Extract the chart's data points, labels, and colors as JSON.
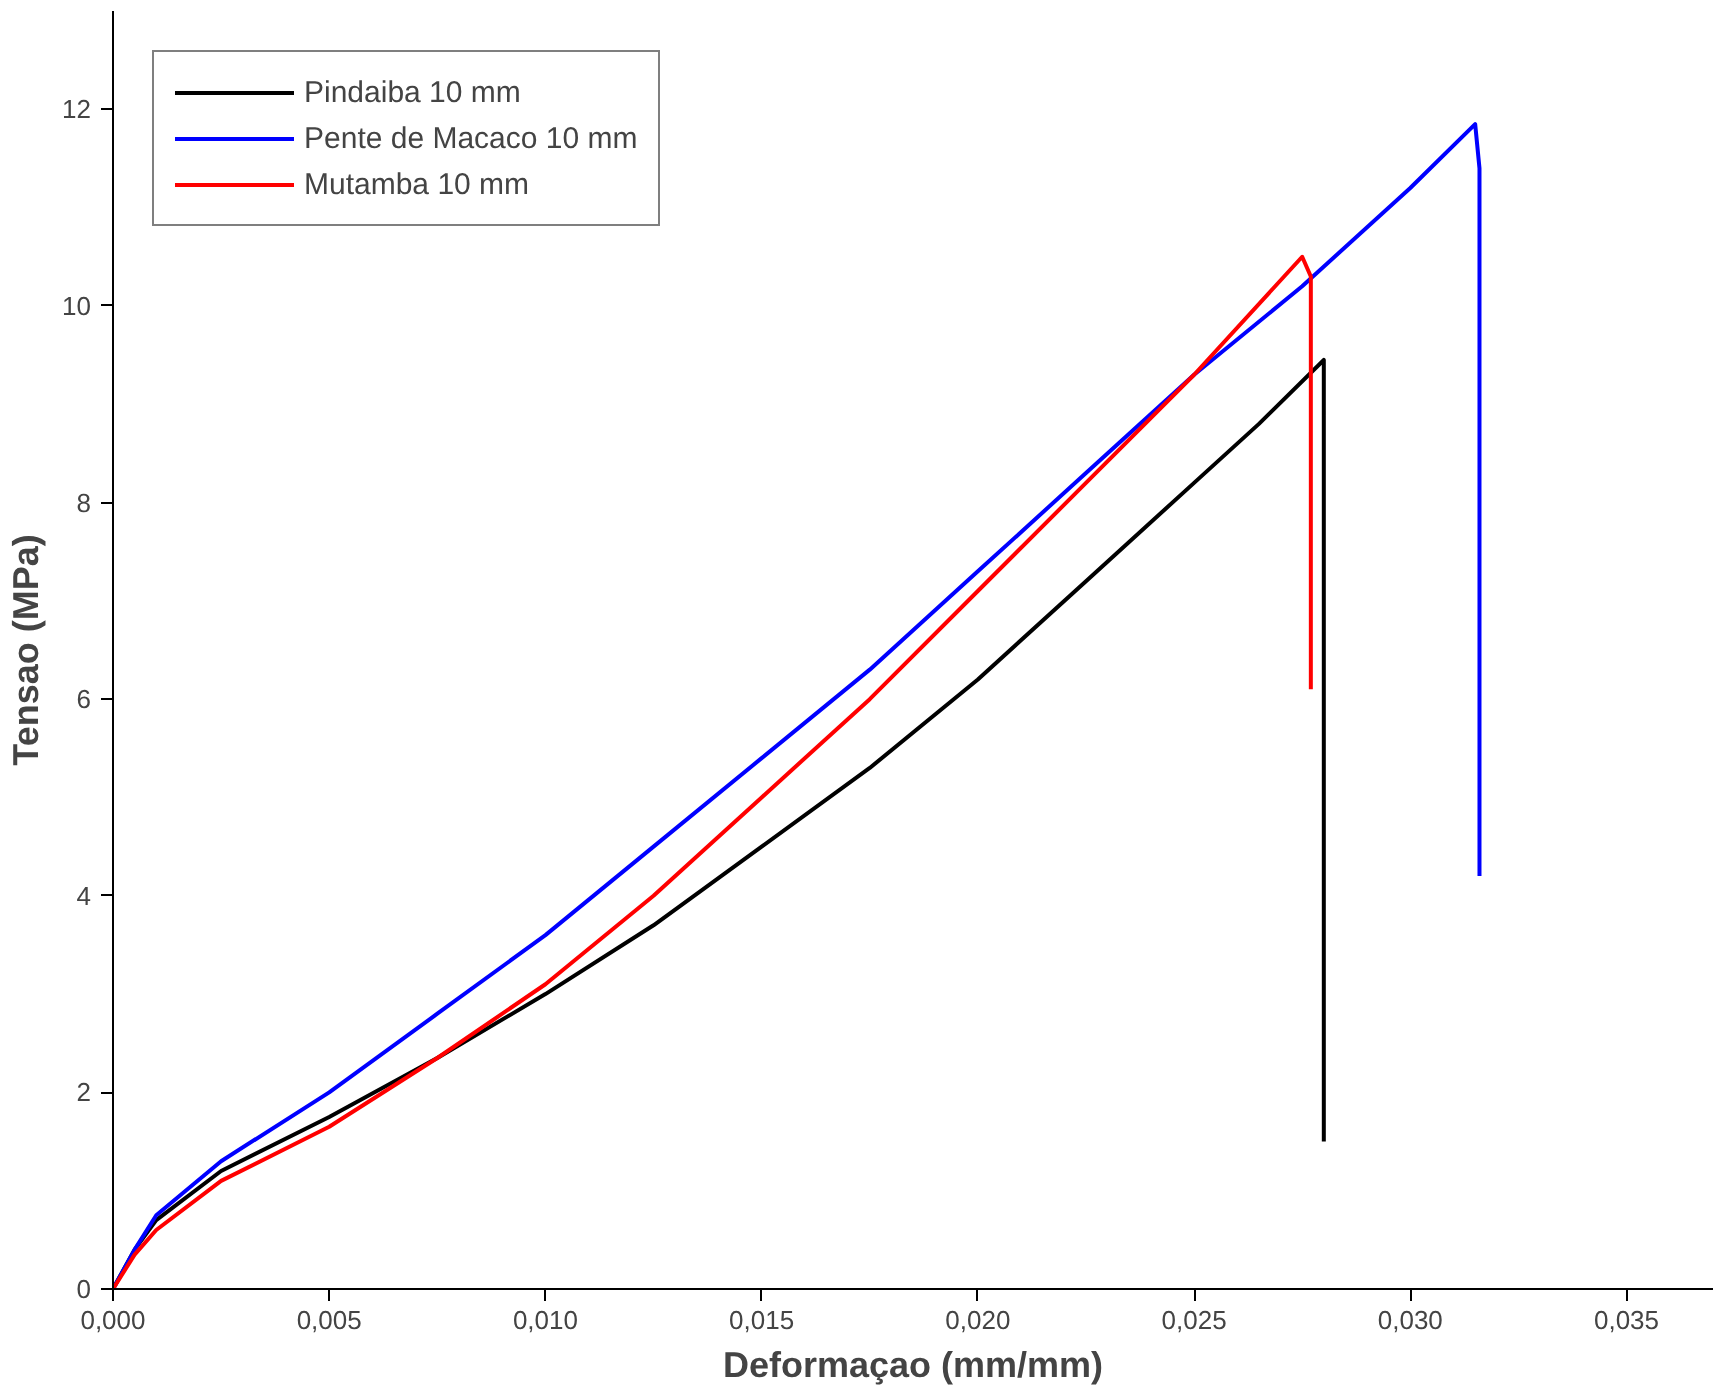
{
  "chart_data": {
    "type": "line",
    "xlabel": "Deformaçao (mm/mm)",
    "ylabel": "Tensao (MPa)",
    "xlim": [
      0,
      0.037
    ],
    "ylim": [
      0,
      13
    ],
    "xticks": [
      {
        "value": 0,
        "label": "0,000"
      },
      {
        "value": 0.005,
        "label": "0,005"
      },
      {
        "value": 0.01,
        "label": "0,010"
      },
      {
        "value": 0.015,
        "label": "0,015"
      },
      {
        "value": 0.02,
        "label": "0,020"
      },
      {
        "value": 0.025,
        "label": "0,025"
      },
      {
        "value": 0.03,
        "label": "0,030"
      },
      {
        "value": 0.035,
        "label": "0,035"
      }
    ],
    "yticks": [
      0,
      2,
      4,
      6,
      8,
      10,
      12
    ],
    "grid": false,
    "legend": "top left",
    "line_style": "solid",
    "marker": "none",
    "series": [
      {
        "name": "Pindaiba 10 mm",
        "color": "#000000",
        "x": [
          0,
          0.0005,
          0.001,
          0.0025,
          0.005,
          0.0075,
          0.01,
          0.0125,
          0.015,
          0.0175,
          0.02,
          0.0225,
          0.025,
          0.0265,
          0.028,
          0.028
        ],
        "values": [
          0,
          0.4,
          0.7,
          1.2,
          1.75,
          2.35,
          3.0,
          3.7,
          4.5,
          5.3,
          6.2,
          7.2,
          8.2,
          8.8,
          9.45,
          1.5
        ]
      },
      {
        "name": "Pente de Macaco 10 mm",
        "color": "#0000ff",
        "x": [
          0,
          0.0005,
          0.001,
          0.0025,
          0.005,
          0.0075,
          0.01,
          0.0125,
          0.015,
          0.0175,
          0.02,
          0.0225,
          0.025,
          0.0275,
          0.03,
          0.0315,
          0.0316,
          0.0316
        ],
        "values": [
          0,
          0.4,
          0.75,
          1.3,
          2.0,
          2.8,
          3.6,
          4.5,
          5.4,
          6.3,
          7.3,
          8.3,
          9.3,
          10.2,
          11.2,
          11.85,
          11.4,
          4.2
        ]
      },
      {
        "name": "Mutamba 10 mm",
        "color": "#ff0000",
        "x": [
          0,
          0.0005,
          0.001,
          0.0025,
          0.005,
          0.0075,
          0.01,
          0.0125,
          0.015,
          0.0175,
          0.02,
          0.0225,
          0.025,
          0.0275,
          0.0277,
          0.0277
        ],
        "values": [
          0,
          0.35,
          0.6,
          1.1,
          1.65,
          2.35,
          3.1,
          4.0,
          5.0,
          6.0,
          7.1,
          8.2,
          9.3,
          10.5,
          10.3,
          6.1
        ]
      }
    ]
  }
}
